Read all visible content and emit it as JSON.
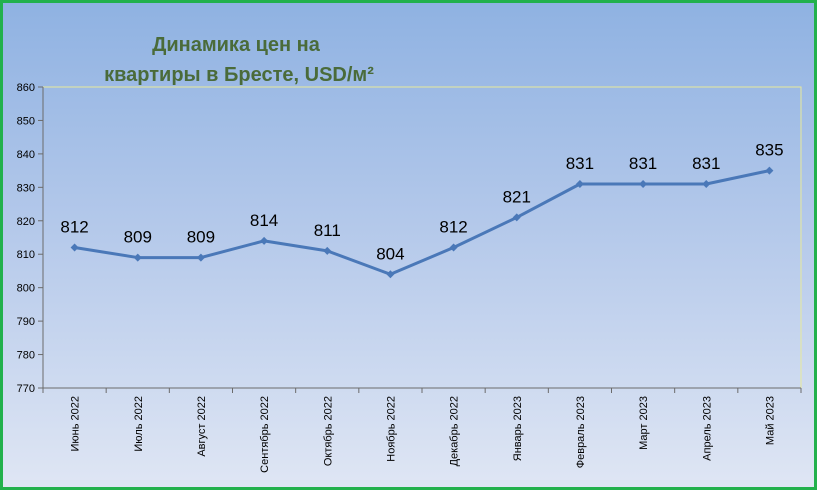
{
  "chart_data": {
    "type": "line",
    "title_lines": [
      "Динамика цен на",
      "квартиры в Бресте, USD/м²"
    ],
    "categories": [
      "Июнь 2022",
      "Июль 2022",
      "Август 2022",
      "Сентябрь 2022",
      "Октябрь 2022",
      "Ноябрь 2022",
      "Декабрь 2022",
      "Январь 2023",
      "Февраль 2023",
      "Март 2023",
      "Апрель 2023",
      "Май 2023"
    ],
    "series": [
      {
        "values": [
          812,
          809,
          809,
          814,
          811,
          804,
          812,
          821,
          831,
          831,
          831,
          835
        ],
        "color": "#4a78b8"
      }
    ],
    "data_labels": [
      "812",
      "809",
      "809",
      "814",
      "811",
      "804",
      "812",
      "821",
      "831",
      "831",
      "831",
      "835"
    ],
    "ylim": [
      770,
      860
    ],
    "yticks": [
      "770",
      "780",
      "790",
      "800",
      "810",
      "820",
      "830",
      "840",
      "850",
      "860"
    ],
    "grid": false,
    "colors": {
      "frame_border": "#22b14c",
      "title": "#4a6b3a",
      "plot_border": "#e8ea9a",
      "line": "#4a78b8"
    }
  }
}
